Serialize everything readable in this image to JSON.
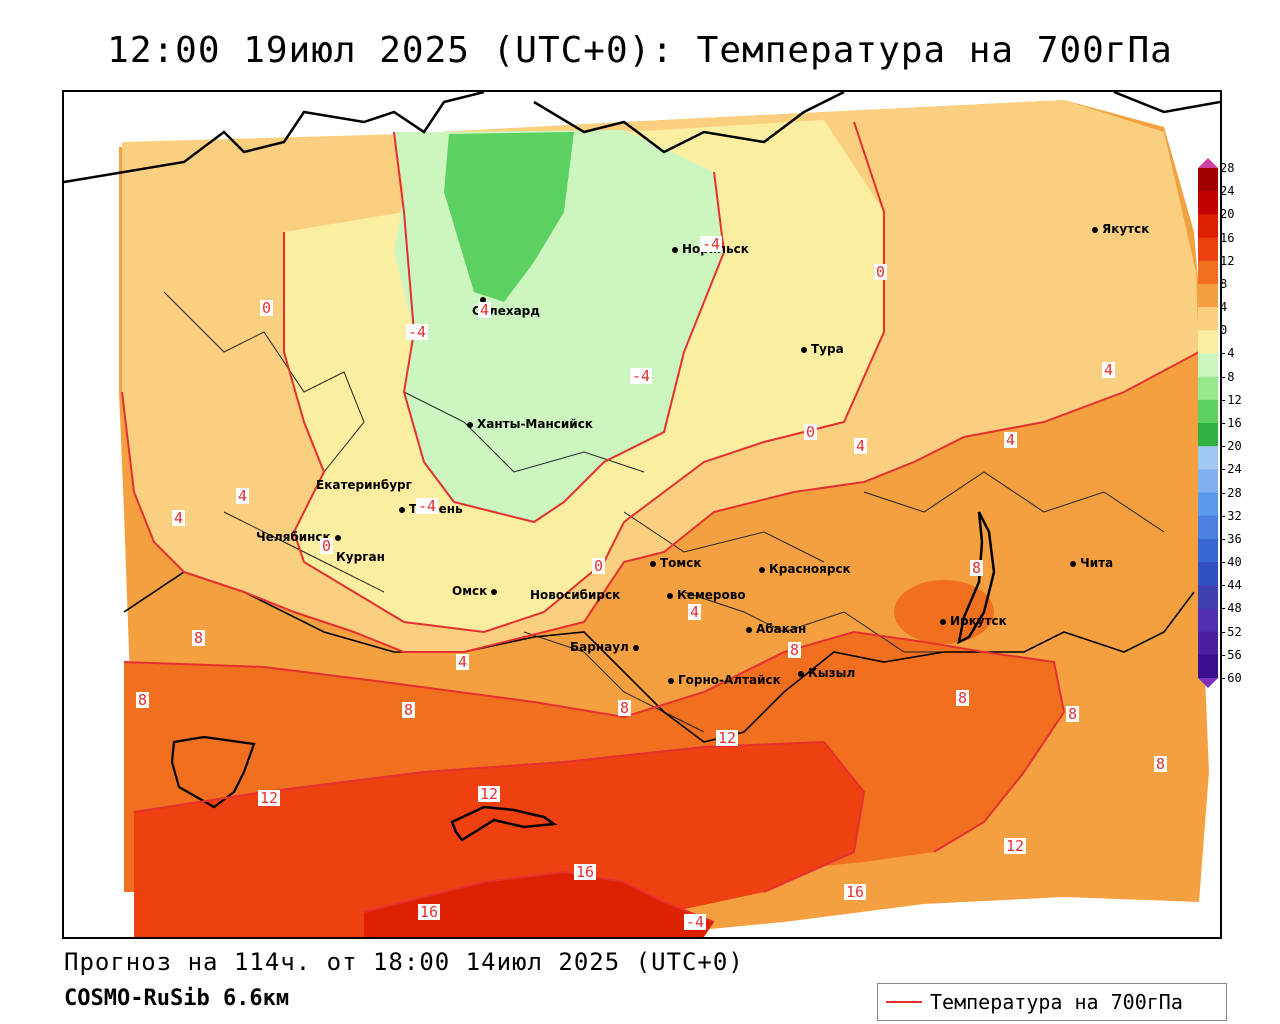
{
  "title": "12:00 19июл 2025 (UTC+0): Температура на 700гПа",
  "forecast_line": "Прогноз на 114ч. от 18:00 14июл 2025 (UTC+0)",
  "model_line": "COSMO-RuSib 6.6км",
  "legend": {
    "label": "Температура на 700гПа",
    "line_color": "#e53030"
  },
  "colorbar": {
    "labels": [
      "28",
      "24",
      "20",
      "16",
      "12",
      "8",
      "4",
      "0",
      "-4",
      "-8",
      "-12",
      "-16",
      "-20",
      "-24",
      "-28",
      "-32",
      "-36",
      "-40",
      "-44",
      "-48",
      "-52",
      "-56",
      "-60"
    ],
    "colors": [
      "#a00000",
      "#c40000",
      "#dd2000",
      "#ee4010",
      "#f07020",
      "#f5a040",
      "#fad080",
      "#fbeea0",
      "#cdf5c0",
      "#98e890",
      "#5cd060",
      "#30b040",
      "#a0c8f0",
      "#80b0f0",
      "#5a98ea",
      "#4a80e0",
      "#3a68d0",
      "#3050c0",
      "#4040b0",
      "#5030b0",
      "#4a20a0",
      "#3a1090"
    ]
  },
  "cities": [
    {
      "name": "Якутск"
    },
    {
      "name": "Норильск"
    },
    {
      "name": "Салехард"
    },
    {
      "name": "Тура"
    },
    {
      "name": "Ханты-Мансийск"
    },
    {
      "name": "Екатеринбург"
    },
    {
      "name": "Тюмень"
    },
    {
      "name": "Челябинск"
    },
    {
      "name": "Курган"
    },
    {
      "name": "Омск"
    },
    {
      "name": "Томск"
    },
    {
      "name": "Новосибирск"
    },
    {
      "name": "Кемерово"
    },
    {
      "name": "Красноярск"
    },
    {
      "name": "Абакан"
    },
    {
      "name": "Барнаул"
    },
    {
      "name": "Горно-Алтайск"
    },
    {
      "name": "Кызыл"
    },
    {
      "name": "Иркутск"
    },
    {
      "name": "Чита"
    }
  ],
  "contour_labels": [
    "0",
    "-4",
    "-4",
    "-4",
    "-4",
    "0",
    "0",
    "4",
    "4",
    "4",
    "4",
    "4",
    "4",
    "0",
    "0",
    "4",
    "4",
    "8",
    "8",
    "8",
    "8",
    "8",
    "8",
    "8",
    "8",
    "8",
    "12",
    "12",
    "12",
    "12",
    "16",
    "16",
    "16",
    "-4"
  ]
}
